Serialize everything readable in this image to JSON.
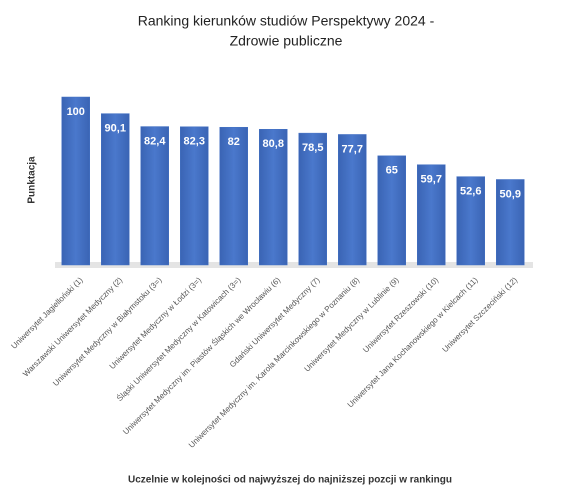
{
  "chart_data": {
    "type": "bar",
    "title": [
      "Ranking kierunków studiów Perspektywy 2024 -",
      "Zdrowie publiczne"
    ],
    "y_label": "Punktacja",
    "x_label": "Uczelnie w kolejności od najwyższej do najniższej pozcji w rankingu",
    "categories": [
      "Uniwersytet Jagielloński (1)",
      "Warszawski Uniwersytet Medyczny (2)",
      "Uniwersytet Medyczny w Białymstoku (3=)",
      "Uniwersytet Medyczny w Łodzi (3=)",
      "Śląski Uniwersytet Medyczny w Katowicach (3=)",
      "Uniwersytet Medyczny im. Piastów Śląskich we Wrocławiu (6)",
      "Gdański Uniwersytet Medyczny (7)",
      "Uniwersytet Medyczny im. Karola Marcinkowskiego w Poznaniu (8)",
      "Uniwersytet Medyczny w Lublinie (9)",
      "Uniwersytet Rzeszowski (10)",
      "Uniwersytet Jana Kochanowskiego w Kielcach (11)",
      "Uniwersytet Szczeciński (12)"
    ],
    "values": [
      100,
      90.1,
      82.4,
      82.3,
      82,
      80.8,
      78.5,
      77.7,
      65,
      59.7,
      52.6,
      50.9
    ],
    "value_labels": [
      "100",
      "90,1",
      "82,4",
      "82,3",
      "82",
      "80,8",
      "78,5",
      "77,7",
      "65",
      "59,7",
      "52,6",
      "50,9"
    ],
    "color": "#4472c4",
    "ylim": [
      0,
      100
    ]
  }
}
